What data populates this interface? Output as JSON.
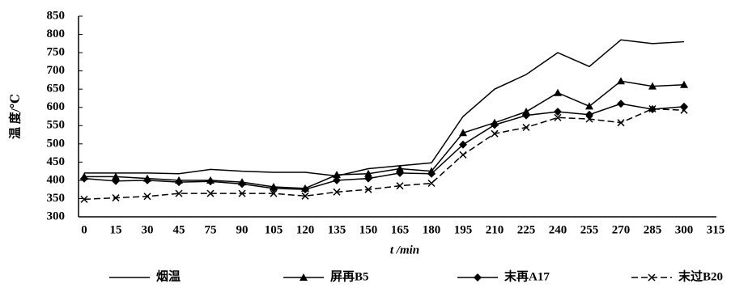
{
  "chart_data": {
    "type": "line",
    "x_label": "t /min",
    "y_label": "温 度/℃",
    "categories": [
      "0",
      "15",
      "30",
      "45",
      "75",
      "90",
      "105",
      "120",
      "135",
      "150",
      "165",
      "180",
      "195",
      "210",
      "225",
      "240",
      "255",
      "270",
      "285",
      "300",
      "315"
    ],
    "ylim": [
      300,
      850
    ],
    "yticks": [
      300,
      350,
      400,
      450,
      500,
      550,
      600,
      650,
      700,
      750,
      800,
      850
    ],
    "series": [
      {
        "name": "烟温",
        "color": "#000000",
        "marker": "none",
        "dash": false,
        "values": [
          420,
          420,
          420,
          418,
          430,
          425,
          422,
          422,
          412,
          432,
          440,
          448,
          575,
          650,
          690,
          750,
          712,
          785,
          775,
          780,
          null
        ]
      },
      {
        "name": "屏再B5",
        "color": "#000000",
        "marker": "triangle",
        "dash": false,
        "values": [
          410,
          410,
          405,
          400,
          400,
          395,
          382,
          378,
          415,
          418,
          432,
          425,
          530,
          558,
          588,
          640,
          603,
          672,
          658,
          662,
          null
        ]
      },
      {
        "name": "末再A17",
        "color": "#000000",
        "marker": "diamond",
        "dash": false,
        "values": [
          405,
          398,
          400,
          395,
          397,
          390,
          378,
          375,
          400,
          405,
          420,
          418,
          498,
          552,
          578,
          588,
          580,
          610,
          595,
          602,
          null
        ]
      },
      {
        "name": "末过B20",
        "color": "#000000",
        "marker": "x",
        "dash": true,
        "values": [
          348,
          352,
          356,
          364,
          364,
          364,
          364,
          357,
          368,
          375,
          385,
          392,
          470,
          528,
          545,
          572,
          568,
          558,
          596,
          592,
          null
        ]
      }
    ]
  }
}
